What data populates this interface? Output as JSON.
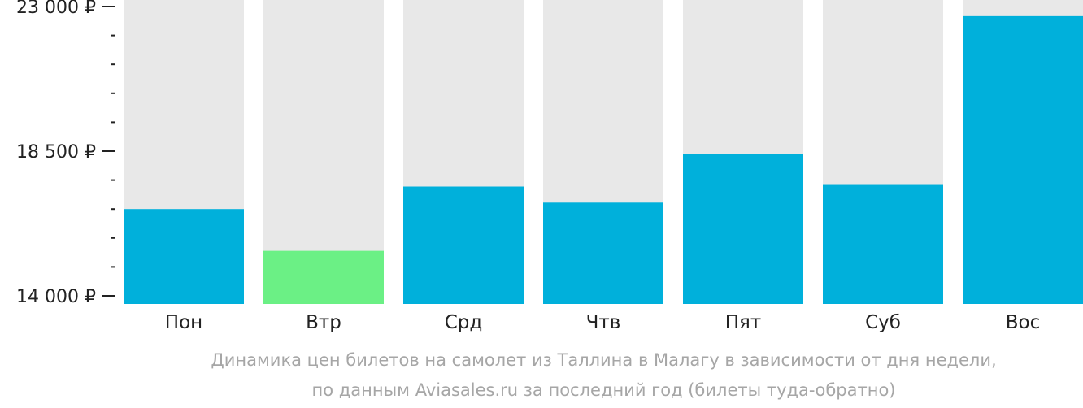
{
  "chart_data": {
    "type": "bar",
    "categories": [
      "Пон",
      "Втр",
      "Срд",
      "Чтв",
      "Пят",
      "Суб",
      "Вос"
    ],
    "values": [
      16700,
      15400,
      17400,
      16900,
      18400,
      17450,
      22700
    ],
    "ylim": [
      14000,
      23000
    ],
    "yticks": [
      {
        "value": 23000,
        "label": "23 000 ₽"
      },
      {
        "value": 18500,
        "label": "18 500 ₽"
      },
      {
        "value": 14000,
        "label": "14 000 ₽"
      }
    ],
    "minor_tick_step": 900,
    "caption_line1": "Динамика цен билетов на самолет из Таллина в Малагу в зависимости от дня недели,",
    "caption_line2": "по данным Aviasales.ru за последний год (билеты туда-обратно)",
    "colors": {
      "bar": "#00b0db",
      "bar_lowest": "#6bf085",
      "bar_background": "#e8e8e8",
      "axis": "#222222",
      "caption": "#a6a6a6"
    },
    "highlight_index": 1
  }
}
